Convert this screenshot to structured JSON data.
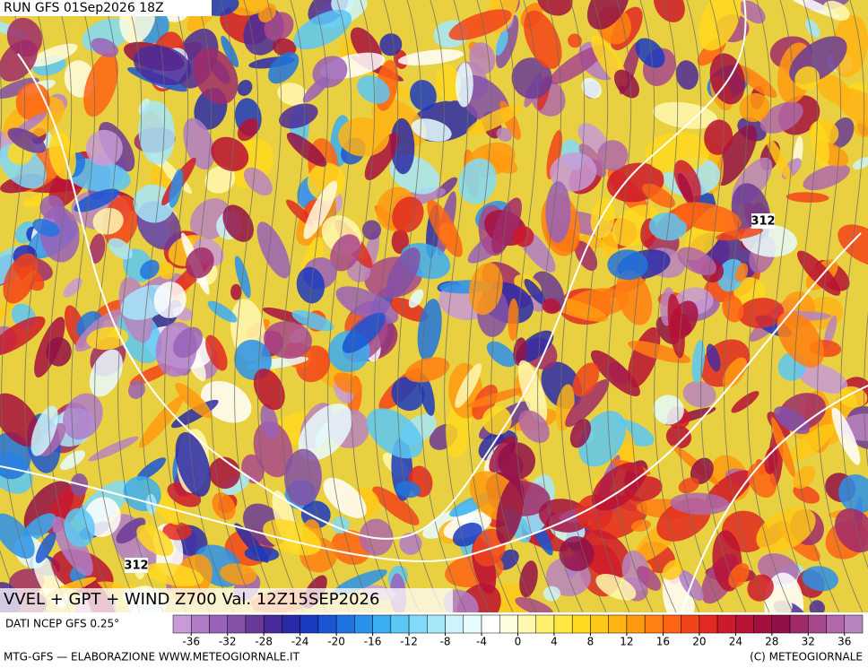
{
  "header": {
    "run": "RUN GFS 01Sep2026 18Z"
  },
  "map": {
    "title": "VVEL + GPT + WIND Z700 Val. 12Z15SEP2026",
    "contour_labels": [
      "312",
      "312"
    ]
  },
  "colorbar": {
    "source": "DATI NCEP GFS 0.25°",
    "range": [
      -38,
      38
    ],
    "colors": [
      "#c89ad8",
      "#b07cc8",
      "#9a62b8",
      "#8450a8",
      "#6a3a98",
      "#4a2a9a",
      "#2a2aa8",
      "#1a3ac0",
      "#1a56d2",
      "#2074e0",
      "#2a92ea",
      "#3aaef2",
      "#5ac8f6",
      "#80daf8",
      "#a6e8fa",
      "#cdf4fc",
      "#e8fbff",
      "#ffffff",
      "#fffde0",
      "#fff8b0",
      "#fff070",
      "#ffe840",
      "#ffd820",
      "#ffc818",
      "#ffb414",
      "#ff9a10",
      "#ff8010",
      "#ff6414",
      "#f2441a",
      "#e02a22",
      "#cc1a2c",
      "#b81234",
      "#a4103e",
      "#921048",
      "#a02a6a",
      "#a8488c",
      "#b068aa",
      "#b884c0"
    ],
    "ticks": [
      -36,
      -32,
      -28,
      -24,
      -20,
      -16,
      -12,
      -8,
      -4,
      0,
      4,
      8,
      12,
      16,
      20,
      24,
      28,
      32,
      36
    ]
  },
  "footer": {
    "left": "MTG-GFS — ELABORAZIONE WWW.METEOGIORNALE.IT",
    "right": "(C) METEOGIORNALE"
  }
}
